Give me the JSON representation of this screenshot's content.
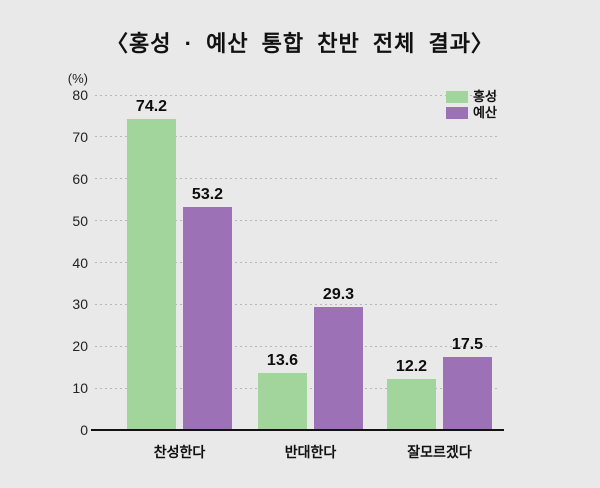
{
  "title": "〈홍성 · 예산 통합 찬반 전체 결과〉",
  "chart_data": {
    "type": "bar",
    "title": "〈홍성 · 예산 통합 찬반 전체 결과〉",
    "categories": [
      "찬성한다",
      "반대한다",
      "잘모르겠다"
    ],
    "series": [
      {
        "name": "홍성",
        "color": "#a1d59c",
        "values": [
          74.2,
          13.6,
          12.2
        ]
      },
      {
        "name": "예산",
        "color": "#9d71b5",
        "values": [
          53.2,
          29.3,
          17.5
        ]
      }
    ],
    "value_labels": [
      "74.2",
      "53.2",
      "13.6",
      "29.3",
      "12.2",
      "17.5"
    ],
    "unit_label": "(%)",
    "xlabel": "",
    "ylabel": "(%)",
    "ylim": [
      0,
      80
    ],
    "ytick_step": 10,
    "yticks": [
      "0",
      "10",
      "20",
      "30",
      "40",
      "50",
      "60",
      "70",
      "80"
    ],
    "grid": "horizontal-dotted",
    "legend_position": "top-right",
    "background_color": "#e9e9e9",
    "axis_color": "#121212"
  }
}
